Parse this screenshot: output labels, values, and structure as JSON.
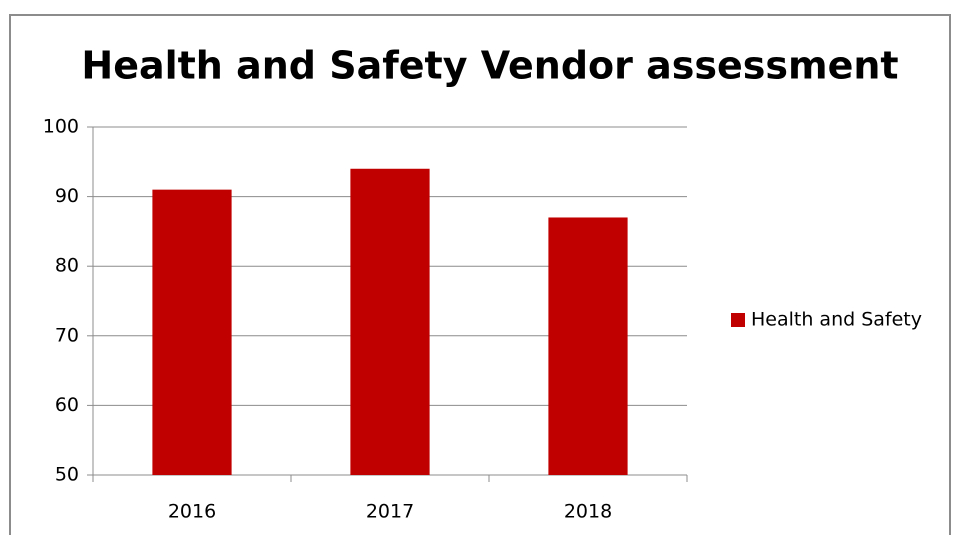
{
  "chart_data": {
    "type": "bar",
    "title": "Health and Safety Vendor assessment",
    "categories": [
      "2016",
      "2017",
      "2018"
    ],
    "series": [
      {
        "name": "Health and Safety",
        "color": "#c00000",
        "values": [
          91,
          94,
          87
        ]
      }
    ],
    "ylim": [
      50,
      100
    ],
    "yticks": [
      50,
      60,
      70,
      80,
      90,
      100
    ],
    "grid": true,
    "legend": "right"
  }
}
